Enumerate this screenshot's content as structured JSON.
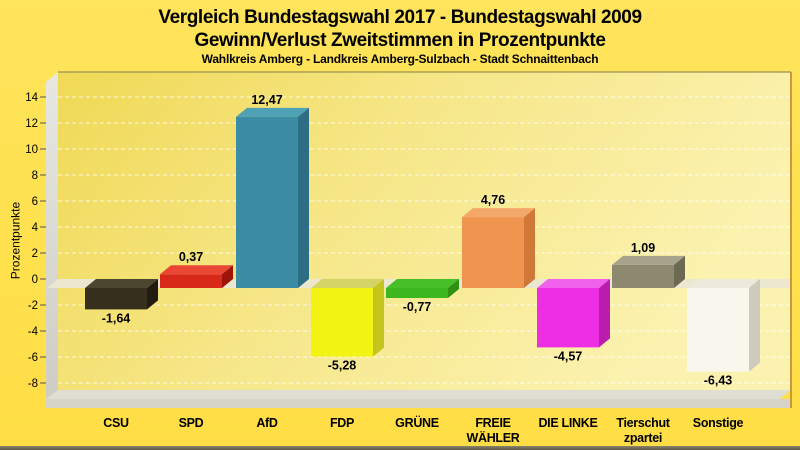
{
  "title": {
    "line1": "Vergleich Bundestagswahl 2017 - Bundestagswahl 2009",
    "line2": "Gewinn/Verlust Zweitstimmen in Prozentpunkte",
    "line3": "Wahlkreis Amberg - Landkreis Amberg-Sulzbach - Stadt Schnaittenbach"
  },
  "chart_data": {
    "type": "bar",
    "style": "3d-column",
    "ylabel": "Prozentpunkte",
    "xlabel": "",
    "ylim": [
      -8.5,
      15.9
    ],
    "yticks": [
      14,
      12,
      10,
      8,
      6,
      4,
      2,
      0,
      -2,
      -4,
      -6,
      -8
    ],
    "grid": "dashed-white-horizontal",
    "legend": "none",
    "decimal_style": "comma",
    "categories": [
      {
        "id": "csu",
        "lines": [
          "CSU"
        ]
      },
      {
        "id": "spd",
        "lines": [
          "SPD"
        ]
      },
      {
        "id": "afd",
        "lines": [
          "AfD"
        ]
      },
      {
        "id": "fdp",
        "lines": [
          "FDP"
        ]
      },
      {
        "id": "gruene",
        "lines": [
          "GRÜNE"
        ]
      },
      {
        "id": "freie-waehler",
        "lines": [
          "FREIE",
          "WÄHLER"
        ]
      },
      {
        "id": "die-linke",
        "lines": [
          "DIE LINKE"
        ]
      },
      {
        "id": "tierschutzpartei",
        "lines": [
          "Tierschut",
          "zpartei"
        ]
      },
      {
        "id": "sonstige",
        "lines": [
          "Sonstige"
        ]
      }
    ],
    "values": [
      -1.64,
      0.37,
      12.47,
      -5.28,
      -0.77,
      4.76,
      -4.57,
      1.09,
      -6.43
    ],
    "value_labels": [
      "-1,64",
      "0,37",
      "12,47",
      "-5,28",
      "-0,77",
      "4,76",
      "-4,57",
      "1,09",
      "-6,43"
    ],
    "bar_colors": [
      {
        "front": "#362f1e",
        "top": "#4c452f",
        "side": "#211c10"
      },
      {
        "front": "#d8281a",
        "top": "#e94634",
        "side": "#a01309"
      },
      {
        "front": "#3c8ca3",
        "top": "#4fa1b5",
        "side": "#2d6e84"
      },
      {
        "front": "#f4f414",
        "top": "#d3d464",
        "side": "#c4c41e"
      },
      {
        "front": "#3db71e",
        "top": "#47bf28",
        "side": "#2e9114"
      },
      {
        "front": "#f0954f",
        "top": "#f3a86a",
        "side": "#cf7838"
      },
      {
        "front": "#ee2ee2",
        "top": "#f162ec",
        "side": "#ba1dae"
      },
      {
        "front": "#8d8970",
        "top": "#a6a28b",
        "side": "#6c6852"
      },
      {
        "front": "#f9f7ed",
        "top": "#edeadb",
        "side": "#cecbbc"
      }
    ]
  },
  "colors": {
    "page_background": "#ffe14e",
    "plot_gradient_start": "#f0d955",
    "plot_gradient_mid": "#f6e78a",
    "plot_gradient_end": "#fbf2b0",
    "wall": "#d8d8d1",
    "floor_top": "#e0ded2",
    "floor_front": "#d6d4c8",
    "zero_band": "#ece8d0",
    "gridline": "#ffffff",
    "right_border": "#c79035",
    "top_border": "#9a9356",
    "text": "#000000"
  }
}
